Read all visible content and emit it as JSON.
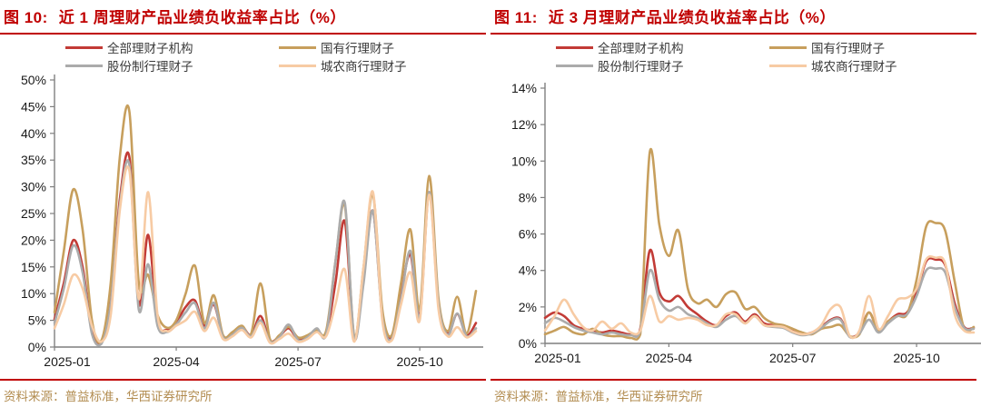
{
  "colors": {
    "title_red": "#C00000",
    "rule_red": "#C00000",
    "source_tan": "#B28C50",
    "legend_text": "#3A3A3A",
    "axis_text": "#1A1A1A",
    "axis_line": "#7F7F7F"
  },
  "panels": [
    {
      "figure_label": "图 10:",
      "title": "近 1 周理财产品业绩负收益率占比（%）",
      "source": "资料来源：普益标准，华西证券研究所"
    },
    {
      "figure_label": "图 11:",
      "title": "近 3 月理财产品业绩负收益率占比（%）",
      "source": "资料来源：普益标准，华西证券研究所"
    }
  ],
  "chart_data": [
    {
      "type": "line",
      "title": "近 1 周理财产品业绩负收益率占比（%）",
      "x_tick_labels": [
        "2025-01",
        "2025-04",
        "2025-07",
        "2025-10"
      ],
      "x_tick_indices": [
        0,
        13,
        26,
        39
      ],
      "ylim": [
        0,
        50
      ],
      "ytick_step": 5,
      "ytick_suffix": "%",
      "grid": false,
      "legend_position": "top",
      "series": [
        {
          "name": "全部理财子机构",
          "color": "#C23B36",
          "values": [
            5.2,
            12,
            20,
            15,
            3,
            0.8,
            9,
            28,
            35.5,
            8,
            21,
            5,
            3.2,
            4.6,
            7.5,
            8.7,
            4,
            8,
            2,
            2.4,
            3.8,
            2.2,
            5.8,
            1.2,
            2,
            3.5,
            1.5,
            2,
            3,
            2.5,
            12,
            23.5,
            1.5,
            13,
            25.5,
            6,
            1.8,
            10,
            17.3,
            6,
            29,
            8,
            2.5,
            6.2,
            2.2,
            4.5
          ]
        },
        {
          "name": "国有行理财子",
          "color": "#C79F5D",
          "values": [
            6.5,
            18,
            29.5,
            22,
            5,
            1.2,
            12,
            36,
            44,
            12,
            13.5,
            6,
            3.6,
            5,
            10,
            15.2,
            4.5,
            9.7,
            2.2,
            2.8,
            4,
            2.5,
            11.9,
            1.5,
            2.2,
            3.8,
            1.8,
            2.2,
            3.2,
            3,
            16,
            26.5,
            2,
            15,
            28.5,
            7,
            2.2,
            12,
            22,
            7,
            32,
            9,
            3,
            9.4,
            2.5,
            10.5
          ]
        },
        {
          "name": "股份制行理财子",
          "color": "#ABABAB",
          "values": [
            4.5,
            11,
            19,
            14,
            2.5,
            0.6,
            8,
            27,
            34,
            7,
            15.5,
            4,
            2.8,
            4.2,
            6.5,
            8.2,
            3.5,
            8.3,
            1.8,
            2.3,
            3.6,
            2,
            5,
            1,
            1.8,
            4.2,
            1.3,
            1.8,
            3.5,
            2.3,
            16,
            27,
            1.5,
            12,
            25.5,
            5.5,
            1.5,
            9,
            18,
            5.5,
            29,
            8,
            2.3,
            6.3,
            2,
            3.5
          ]
        },
        {
          "name": "城农商行理财子",
          "color": "#F7CBA4",
          "values": [
            3.5,
            8,
            13.5,
            11,
            4,
            1,
            6,
            26,
            33,
            9,
            29,
            6,
            3,
            4,
            5,
            6.6,
            3,
            5.5,
            1.5,
            2,
            3.2,
            1.8,
            4.5,
            0.8,
            1.5,
            2.5,
            1,
            1.5,
            2.8,
            2,
            8,
            14.5,
            1,
            15,
            29,
            5,
            1.2,
            8,
            14,
            5,
            28.5,
            7,
            2,
            3.7,
            1.8,
            3
          ]
        }
      ]
    },
    {
      "type": "line",
      "title": "近 3 月理财产品业绩负收益率占比（%）",
      "x_tick_labels": [
        "2025-01",
        "2025-04",
        "2025-07",
        "2025-10"
      ],
      "x_tick_indices": [
        0,
        13,
        26,
        39
      ],
      "ylim": [
        0,
        14
      ],
      "ytick_step": 2,
      "ytick_suffix": "%",
      "grid": false,
      "legend_position": "top",
      "series": [
        {
          "name": "全部理财子机构",
          "color": "#C23B36",
          "values": [
            1.4,
            1.7,
            1.5,
            1.0,
            0.8,
            0.7,
            0.6,
            0.7,
            0.6,
            0.5,
            0.8,
            5.1,
            2.8,
            2.3,
            2.6,
            2.0,
            1.6,
            1.2,
            1.0,
            1.5,
            1.7,
            1.2,
            1.6,
            1.1,
            1.0,
            0.9,
            0.7,
            0.5,
            0.6,
            0.9,
            1.3,
            1.35,
            0.4,
            0.6,
            1.7,
            0.7,
            1.2,
            1.6,
            1.7,
            2.8,
            4.5,
            4.6,
            4.3,
            2.2,
            0.9,
            0.85
          ]
        },
        {
          "name": "国有行理财子",
          "color": "#C79F5D",
          "values": [
            0.5,
            0.7,
            0.9,
            0.6,
            0.5,
            0.8,
            0.5,
            0.4,
            0.4,
            0.3,
            0.5,
            10.5,
            6.5,
            4.8,
            6.2,
            3.0,
            2.2,
            2.4,
            2.0,
            2.7,
            2.8,
            1.9,
            2.0,
            1.4,
            1.1,
            1.0,
            0.8,
            0.6,
            0.5,
            0.8,
            0.9,
            1.0,
            0.4,
            0.5,
            1.7,
            0.7,
            1.2,
            1.5,
            1.6,
            3.5,
            6.4,
            6.6,
            6.2,
            3.4,
            0.8,
            0.9
          ]
        },
        {
          "name": "股份制行理财子",
          "color": "#ABABAB",
          "values": [
            1.1,
            1.4,
            1.2,
            0.9,
            0.7,
            0.6,
            0.5,
            0.6,
            0.5,
            0.45,
            0.7,
            4.0,
            2.4,
            1.8,
            2.0,
            1.6,
            1.4,
            1.1,
            0.9,
            1.3,
            1.5,
            1.1,
            1.5,
            1.0,
            0.9,
            0.85,
            0.6,
            0.45,
            0.55,
            0.85,
            1.25,
            1.3,
            0.35,
            0.55,
            1.3,
            0.6,
            1.1,
            1.5,
            1.6,
            2.6,
            4.0,
            4.1,
            3.9,
            2.0,
            0.85,
            0.8
          ]
        },
        {
          "name": "城农商行理财子",
          "color": "#F7CBA4",
          "values": [
            0.7,
            1.5,
            2.4,
            1.6,
            0.9,
            0.7,
            1.2,
            0.8,
            1.1,
            0.6,
            0.7,
            2.6,
            1.2,
            1.5,
            1.3,
            1.4,
            1.3,
            1.0,
            1.0,
            1.6,
            1.6,
            1.1,
            1.5,
            1.0,
            0.95,
            0.9,
            0.65,
            0.5,
            0.6,
            1.0,
            1.9,
            2.0,
            0.4,
            0.7,
            2.6,
            0.8,
            1.5,
            2.4,
            2.5,
            3.0,
            4.6,
            4.7,
            4.4,
            1.6,
            0.7,
            0.6
          ]
        }
      ]
    }
  ]
}
